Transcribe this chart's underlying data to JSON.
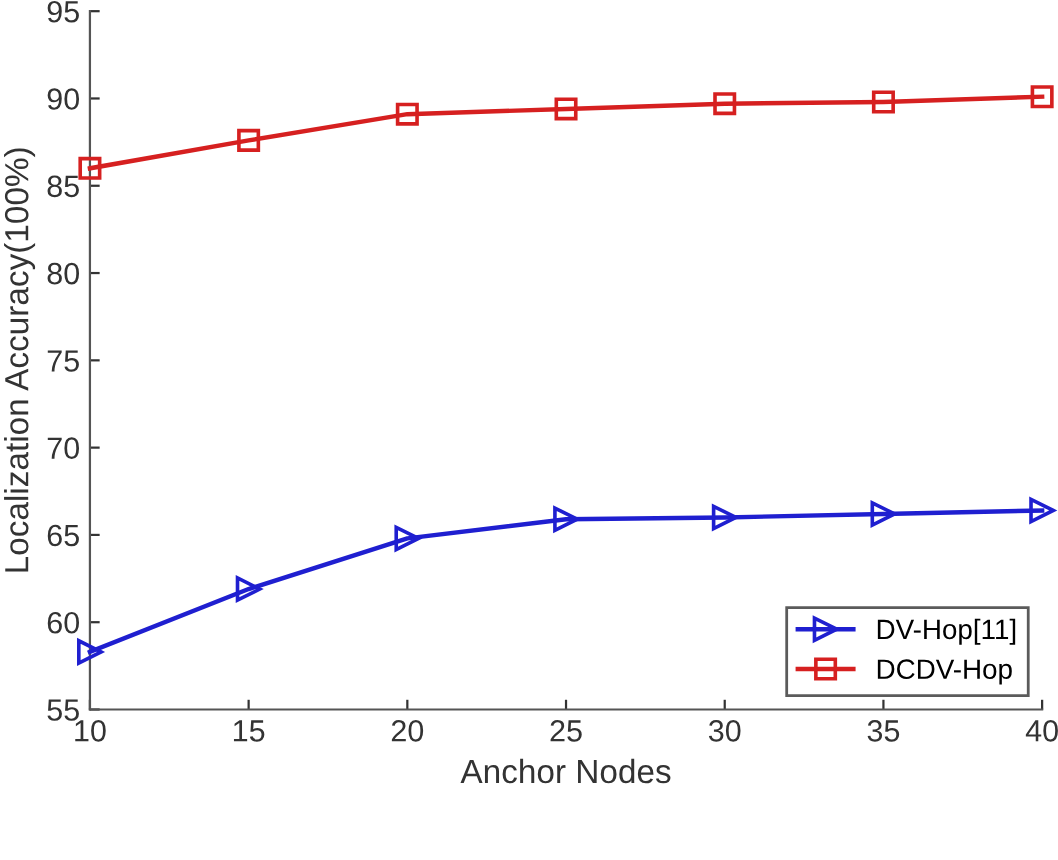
{
  "chart_data": {
    "type": "line",
    "xlabel": "Anchor Nodes",
    "ylabel": "Localization Accuracy(100%)",
    "x": [
      10,
      15,
      20,
      25,
      30,
      35,
      40
    ],
    "series": [
      {
        "name": "DV-Hop[11]",
        "color": "#1f1fd0",
        "marker": "triangle",
        "values": [
          58.3,
          61.9,
          64.8,
          65.9,
          66.0,
          66.2,
          66.4
        ]
      },
      {
        "name": "DCDV-Hop",
        "color": "#d62020",
        "marker": "square",
        "values": [
          86.0,
          87.6,
          89.1,
          89.4,
          89.7,
          89.8,
          90.1
        ]
      }
    ],
    "xlim": [
      10,
      40
    ],
    "xticks": [
      10,
      15,
      20,
      25,
      30,
      35,
      40
    ],
    "ylim": [
      55,
      95
    ],
    "yticks": [
      55,
      60,
      65,
      70,
      75,
      80,
      85,
      90,
      95
    ],
    "grid": false,
    "legend": "bottom right",
    "line_style": "solid"
  }
}
